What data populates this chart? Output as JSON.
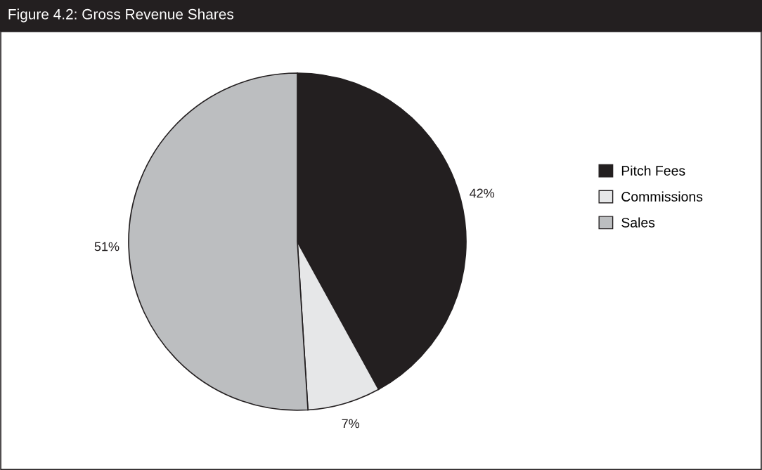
{
  "chart_data": {
    "type": "pie",
    "title": "Figure 4.2: Gross Revenue Shares",
    "categories": [
      "Pitch Fees",
      "Commissions",
      "Sales"
    ],
    "values": [
      42,
      7,
      51
    ],
    "colors": [
      "#231f20",
      "#e6e7e8",
      "#bcbec0"
    ],
    "value_labels": [
      "42%",
      "7%",
      "51%"
    ],
    "legend": "right"
  }
}
